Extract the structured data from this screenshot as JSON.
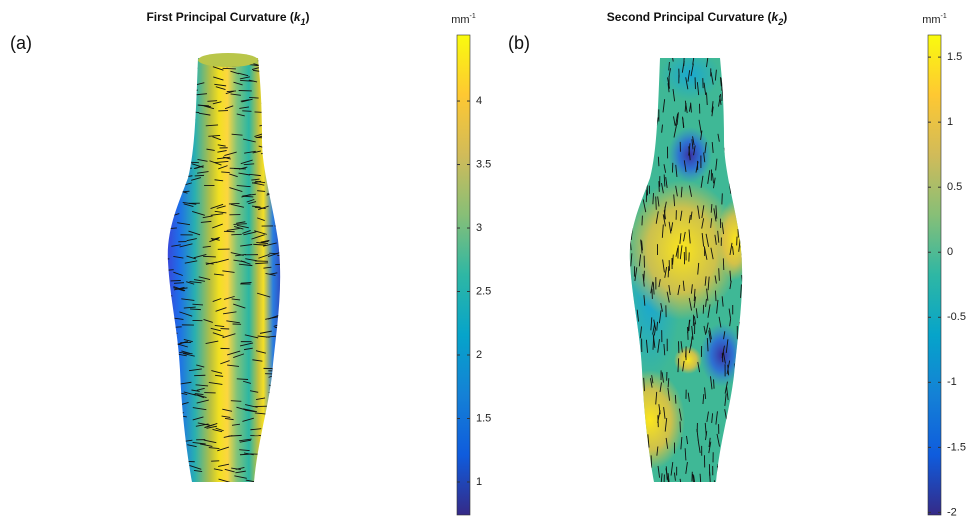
{
  "chart_data": [
    {
      "type": "surface",
      "panel_label": "(a)",
      "title_parts": [
        "First Principal Curvature (",
        "k",
        "1",
        ")"
      ],
      "colorbar_unit": [
        "mm",
        "-1"
      ],
      "clim": [
        0.74,
        4.52
      ],
      "cticks": [
        1,
        1.5,
        2,
        2.5,
        3,
        3.5,
        4
      ],
      "colormap": [
        "#352a87",
        "#0f5cdd",
        "#1481d6",
        "#06a4ca",
        "#2eb7a4",
        "#87bf77",
        "#d1bb59",
        "#fec832",
        "#f9fb0e"
      ]
    },
    {
      "type": "surface",
      "panel_label": "(b)",
      "title_parts": [
        "Second Principal Curvature (",
        "k",
        "2",
        ")"
      ],
      "colorbar_unit": [
        "mm",
        "-1"
      ],
      "clim": [
        -2.02,
        1.67
      ],
      "cticks": [
        -2,
        -1.5,
        -1,
        -0.5,
        0,
        0.5,
        1,
        1.5
      ],
      "colormap": [
        "#352a87",
        "#0f5cdd",
        "#1481d6",
        "#06a4ca",
        "#2eb7a4",
        "#87bf77",
        "#d1bb59",
        "#fec832",
        "#f9fb0e"
      ]
    }
  ]
}
